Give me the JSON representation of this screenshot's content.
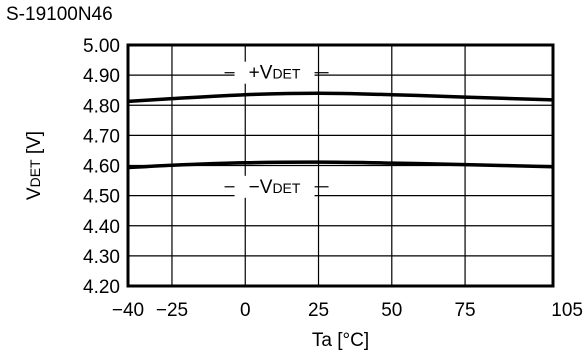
{
  "chart_data": {
    "type": "line",
    "title": "S-19100N46",
    "xlabel": "Ta [°C]",
    "ylabel_main": "V",
    "ylabel_sub": "DET",
    "ylabel_unit": " [V]",
    "xlim": [
      -40,
      105
    ],
    "ylim": [
      4.2,
      5.0
    ],
    "x_ticks": [
      -40,
      -25,
      0,
      25,
      50,
      75,
      105
    ],
    "x_tick_labels": [
      "−40",
      "−25",
      "0",
      "25",
      "50",
      "75",
      "105"
    ],
    "y_ticks": [
      4.2,
      4.3,
      4.4,
      4.5,
      4.6,
      4.7,
      4.8,
      4.9,
      5.0
    ],
    "y_tick_labels": [
      "4.20",
      "4.30",
      "4.40",
      "4.50",
      "4.60",
      "4.70",
      "4.80",
      "4.90",
      "5.00"
    ],
    "grid": true,
    "series": [
      {
        "label_prefix": "+V",
        "label_sub": "DET",
        "x": [
          -40,
          -25,
          0,
          25,
          50,
          75,
          105
        ],
        "values": [
          4.813,
          4.822,
          4.835,
          4.84,
          4.835,
          4.827,
          4.818
        ]
      },
      {
        "label_prefix": "−V",
        "label_sub": "DET",
        "x": [
          -40,
          -25,
          0,
          25,
          50,
          75,
          105
        ],
        "values": [
          4.593,
          4.601,
          4.609,
          4.611,
          4.608,
          4.603,
          4.596
        ]
      }
    ]
  }
}
